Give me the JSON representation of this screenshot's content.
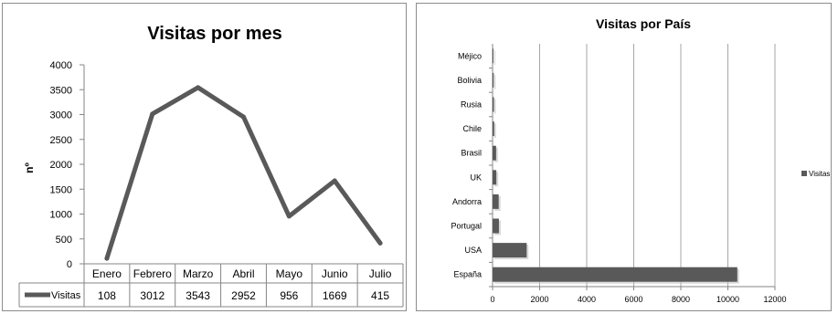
{
  "chart_data": [
    {
      "type": "line",
      "title": "Visitas por mes",
      "xlabel": "",
      "ylabel": "nº",
      "ylim": [
        0,
        4000
      ],
      "yticks": [
        0,
        500,
        1000,
        1500,
        2000,
        2500,
        3000,
        3500,
        4000
      ],
      "categories": [
        "Enero",
        "Febrero",
        "Marzo",
        "Abril",
        "Mayo",
        "Junio",
        "Julio"
      ],
      "series": [
        {
          "name": "Visitas",
          "values": [
            108,
            3012,
            3543,
            2952,
            956,
            1669,
            415
          ]
        }
      ],
      "data_table": true,
      "grid": false,
      "colors": {
        "series": "#595959"
      }
    },
    {
      "type": "bar",
      "orientation": "horizontal",
      "title": "Visitas por País",
      "xlabel": "",
      "ylabel": "",
      "xlim": [
        0,
        12000
      ],
      "xticks": [
        0,
        2000,
        4000,
        6000,
        8000,
        10000,
        12000
      ],
      "categories": [
        "España",
        "USA",
        "Portugal",
        "Andorra",
        "UK",
        "Brasil",
        "Chile",
        "Rusia",
        "Bolivia",
        "Méjico"
      ],
      "series": [
        {
          "name": "Visitas",
          "values": [
            10400,
            1450,
            270,
            260,
            160,
            150,
            70,
            60,
            50,
            40
          ]
        }
      ],
      "legend": "right",
      "grid": true,
      "colors": {
        "series": "#595959",
        "grid": "#a6a6a6"
      }
    }
  ]
}
